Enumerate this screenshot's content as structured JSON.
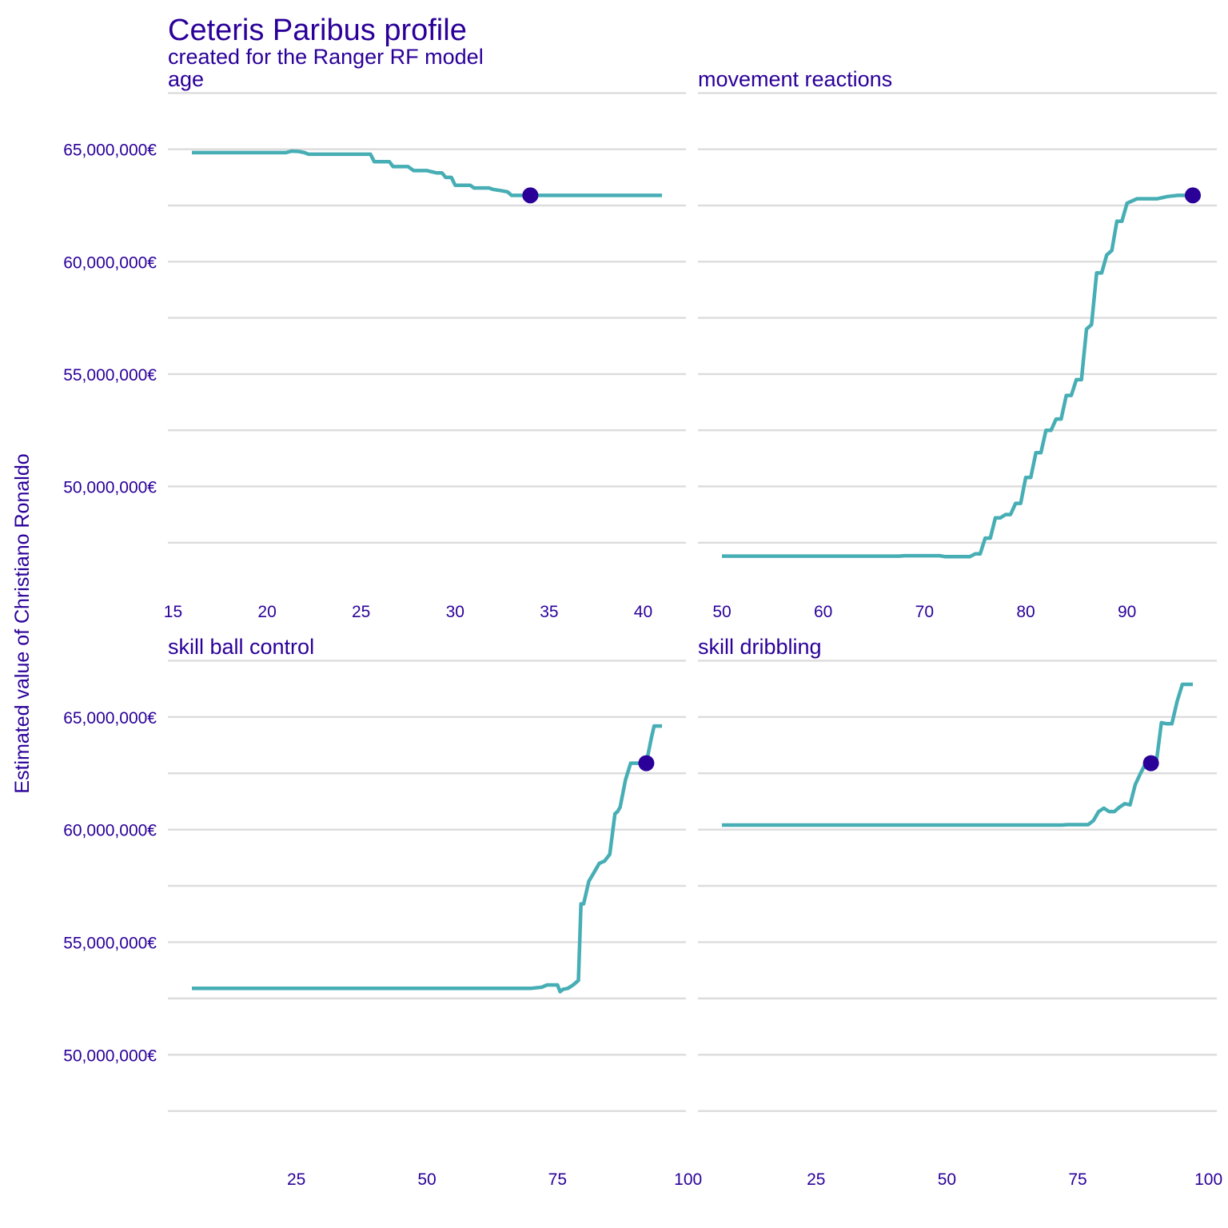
{
  "chart_data": {
    "type": "line",
    "title": "Ceteris Paribus profile",
    "subtitle": "created for the Ranger RF model",
    "ylabel": "Estimated value of Christiano Ronaldo",
    "ylim": [
      45500000,
      67800000
    ],
    "y_ticks": [
      50000000,
      55000000,
      60000000,
      65000000
    ],
    "y_tick_labels": [
      "50,000,000€",
      "55,000,000€",
      "60,000,000€",
      "65,000,000€"
    ],
    "grid": true,
    "colors": {
      "line": "#46aeb4",
      "point": "#2b0099",
      "text": "#2b0099",
      "grid": "#dcdcdc"
    },
    "panels": [
      {
        "name": "age",
        "xlim": [
          16,
          41
        ],
        "x_ticks": [
          15,
          20,
          25,
          30,
          35,
          40
        ],
        "series": {
          "x": [
            16,
            17,
            18,
            19,
            20,
            21,
            21.3,
            21.7,
            22,
            22.2,
            23,
            24,
            25,
            25.5,
            25.7,
            26,
            26.5,
            26.7,
            27,
            27.5,
            27.8,
            28,
            28.5,
            29,
            29.3,
            29.5,
            29.8,
            30,
            30.5,
            30.8,
            31,
            31.5,
            31.8,
            32,
            32.5,
            32.8,
            33,
            34,
            35,
            36,
            37,
            38,
            39,
            40,
            41
          ],
          "y": [
            64850000,
            64850000,
            64850000,
            64850000,
            64850000,
            64850000,
            64920000,
            64900000,
            64850000,
            64780000,
            64780000,
            64780000,
            64780000,
            64780000,
            64450000,
            64450000,
            64450000,
            64230000,
            64230000,
            64230000,
            64050000,
            64050000,
            64050000,
            63950000,
            63950000,
            63750000,
            63750000,
            63400000,
            63400000,
            63400000,
            63280000,
            63280000,
            63280000,
            63220000,
            63150000,
            63100000,
            62950000,
            62950000,
            62950000,
            62950000,
            62950000,
            62950000,
            62950000,
            62950000,
            62950000
          ]
        },
        "point": {
          "x": 34,
          "y": 62950000
        }
      },
      {
        "name": "movement  reactions",
        "xlim": [
          50,
          96.5
        ],
        "x_ticks": [
          50,
          60,
          70,
          80,
          90
        ],
        "series": {
          "x": [
            50,
            55,
            60,
            65,
            67.5,
            68,
            70,
            71.5,
            72,
            74.5,
            75,
            75.5,
            76,
            76.5,
            77,
            77.5,
            78,
            78.5,
            79,
            79.5,
            80,
            80.5,
            81,
            81.5,
            82,
            82.5,
            83,
            83.5,
            84,
            84.5,
            85,
            85.5,
            86,
            86.5,
            87,
            87.5,
            88,
            88.5,
            89,
            89.5,
            90,
            91,
            92,
            93,
            94,
            95,
            96.5
          ],
          "y": [
            46900000,
            46900000,
            46900000,
            46900000,
            46900000,
            46920000,
            46920000,
            46920000,
            46880000,
            46880000,
            47000000,
            47000000,
            47700000,
            47700000,
            48600000,
            48600000,
            48750000,
            48750000,
            49250000,
            49250000,
            50400000,
            50400000,
            51500000,
            51500000,
            52500000,
            52500000,
            53000000,
            53000000,
            54050000,
            54050000,
            54750000,
            54750000,
            57000000,
            57200000,
            59500000,
            59500000,
            60300000,
            60500000,
            61800000,
            61800000,
            62600000,
            62800000,
            62800000,
            62800000,
            62900000,
            62950000,
            62950000
          ]
        },
        "point": {
          "x": 96.5,
          "y": 62950000
        }
      },
      {
        "name": "skill  ball  control",
        "xlim": [
          5,
          95
        ],
        "x_ticks": [
          25,
          50,
          75,
          100
        ],
        "series": {
          "x": [
            5,
            20,
            40,
            60,
            70,
            72,
            73,
            74,
            75,
            75.5,
            76,
            77,
            78,
            79,
            79.5,
            80,
            81,
            82,
            83,
            84,
            85,
            86,
            86.5,
            87,
            88,
            89,
            90,
            91,
            92,
            93,
            93.5,
            94,
            95
          ],
          "y": [
            52950000,
            52950000,
            52950000,
            52950000,
            52950000,
            53000000,
            53100000,
            53100000,
            53100000,
            52800000,
            52900000,
            52950000,
            53100000,
            53300000,
            56700000,
            56700000,
            57700000,
            58100000,
            58500000,
            58600000,
            58900000,
            60700000,
            60800000,
            61000000,
            62200000,
            62950000,
            62950000,
            62950000,
            62950000,
            64100000,
            64600000,
            64600000,
            64600000
          ]
        },
        "point": {
          "x": 92,
          "y": 62950000
        }
      },
      {
        "name": "skill  dribbling",
        "xlim": [
          7,
          97
        ],
        "x_ticks": [
          25,
          50,
          75,
          100
        ],
        "series": {
          "x": [
            7,
            20,
            40,
            60,
            72,
            73,
            77,
            78,
            79,
            80,
            81,
            82,
            83,
            84,
            85,
            86,
            87,
            88,
            89,
            90,
            91,
            92,
            93,
            94,
            95,
            96,
            97
          ],
          "y": [
            60200000,
            60200000,
            60200000,
            60200000,
            60200000,
            60220000,
            60220000,
            60400000,
            60800000,
            60950000,
            60800000,
            60800000,
            61000000,
            61150000,
            61100000,
            62000000,
            62500000,
            62950000,
            62950000,
            62950000,
            64750000,
            64700000,
            64700000,
            65700000,
            66450000,
            66450000,
            66450000
          ]
        },
        "point": {
          "x": 89,
          "y": 62950000
        }
      }
    ]
  }
}
